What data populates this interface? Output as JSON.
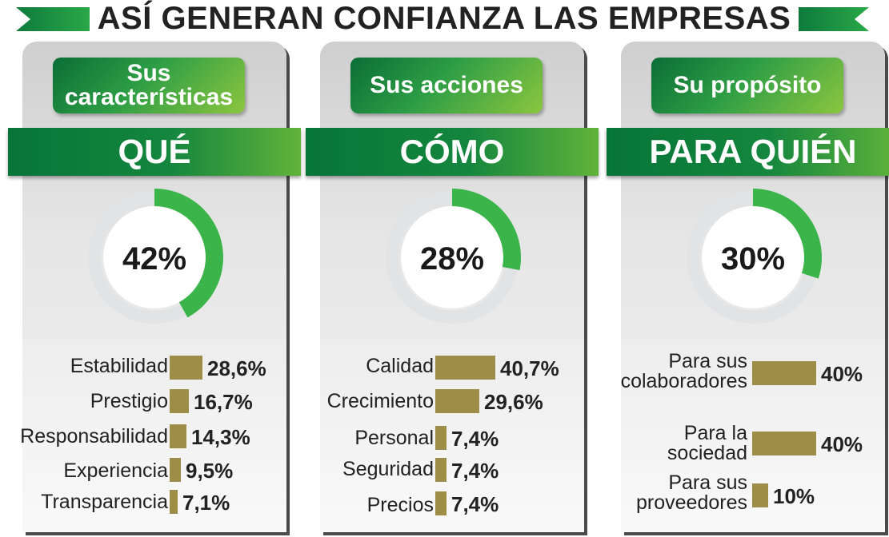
{
  "main_title": "ASÍ GENERAN CONFIANZA LAS EMPRESAS",
  "colors": {
    "green_dark": "#0a6e36",
    "green_bright": "#3bb54a",
    "bar": "#9d8d47",
    "ring": "#e1e3e5"
  },
  "chart_data": [
    {
      "type": "pie",
      "caption": [
        "Sus",
        "características"
      ],
      "heading": "QUÉ",
      "donut_percent": 42,
      "donut_label": "42%",
      "breakdown": {
        "type": "bar",
        "categories": [
          "Estabilidad",
          "Prestigio",
          "Responsabilidad",
          "Experiencia",
          "Transparencia"
        ],
        "values": [
          28.6,
          16.7,
          14.3,
          9.5,
          7.1
        ],
        "value_labels": [
          "28,6%",
          "16,7%",
          "14,3%",
          "9,5%",
          "7,1%"
        ]
      }
    },
    {
      "type": "pie",
      "caption": [
        "Sus acciones"
      ],
      "heading": "CÓMO",
      "donut_percent": 28,
      "donut_label": "28%",
      "breakdown": {
        "type": "bar",
        "categories": [
          "Calidad",
          "Crecimiento",
          "Personal",
          "Seguridad",
          "Precios"
        ],
        "values": [
          40.7,
          29.6,
          7.4,
          7.4,
          7.4
        ],
        "value_labels": [
          "40,7%",
          "29,6%",
          "7,4%",
          "7,4%",
          "7,4%"
        ]
      }
    },
    {
      "type": "pie",
      "caption": [
        "Su propósito"
      ],
      "heading": "PARA QUIÉN",
      "donut_percent": 30,
      "donut_label": "30%",
      "breakdown": {
        "type": "bar",
        "categories": [
          [
            "Para sus",
            "colaboradores"
          ],
          [
            "Para la",
            "sociedad"
          ],
          [
            "Para sus",
            "proveedores"
          ]
        ],
        "values": [
          40,
          40,
          10
        ],
        "value_labels": [
          "40%",
          "40%",
          "10%"
        ]
      }
    }
  ]
}
